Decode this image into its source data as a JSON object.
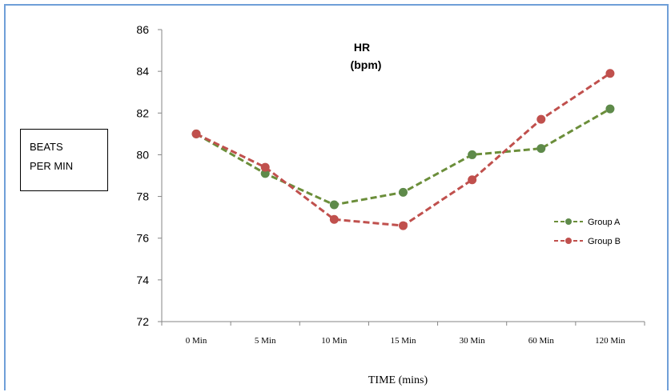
{
  "chart_data": {
    "type": "line",
    "title": [
      "HR",
      "(bpm)"
    ],
    "ylabel": [
      "BEATS",
      "PER MIN"
    ],
    "xlabel": "TIME (mins)",
    "categories": [
      "0 Min",
      "5 Min",
      "10 Min",
      "15 Min",
      "30 Min",
      "60 Min",
      "120 Min"
    ],
    "ylim": [
      72,
      86
    ],
    "yticks": [
      "72",
      "74",
      "76",
      "78",
      "80",
      "82",
      "84",
      "86"
    ],
    "grid": false,
    "legend_position": "right",
    "series": [
      {
        "name": "Group A",
        "color": "#6b8e3a",
        "marker_color": "#5e8a4a",
        "line_style": "dashed",
        "values": [
          81.0,
          79.1,
          77.6,
          78.2,
          80.0,
          80.3,
          82.2
        ]
      },
      {
        "name": "Group B",
        "color": "#c0504d",
        "marker_color": "#c0504d",
        "line_style": "dashed",
        "values": [
          81.0,
          79.4,
          76.9,
          76.6,
          78.8,
          81.7,
          83.9
        ]
      }
    ]
  }
}
